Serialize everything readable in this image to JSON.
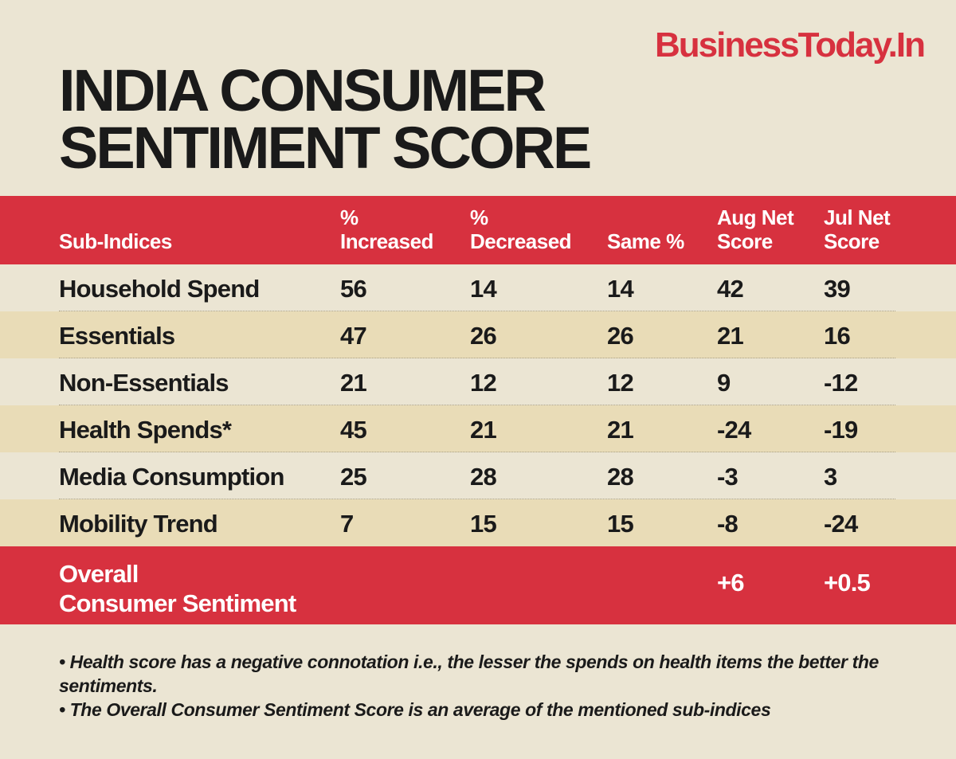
{
  "brand": "BusinessToday.In",
  "title": {
    "line1": "INDIA CONSUMER",
    "line2": "SENTIMENT SCORE"
  },
  "colors": {
    "accent": "#d7313f",
    "background": "#ebe5d3",
    "alt_row": "#e9dcb7"
  },
  "chart_data": {
    "type": "table",
    "title": "INDIA CONSUMER SENTIMENT SCORE",
    "columns": [
      {
        "line1": "",
        "line2": "Sub-Indices"
      },
      {
        "line1": "%",
        "line2": "Increased"
      },
      {
        "line1": "%",
        "line2": "Decreased"
      },
      {
        "line1": "",
        "line2": "Same %"
      },
      {
        "line1": "Aug Net",
        "line2": "Score"
      },
      {
        "line1": "Jul Net",
        "line2": "Score"
      }
    ],
    "rows": [
      [
        "Household Spend",
        "56",
        "14",
        "14",
        "42",
        "39"
      ],
      [
        "Essentials",
        "47",
        "26",
        "26",
        "21",
        "16"
      ],
      [
        "Non-Essentials",
        "21",
        "12",
        "12",
        "9",
        "-12"
      ],
      [
        "Health Spends*",
        "45",
        "21",
        "21",
        "-24",
        "-19"
      ],
      [
        "Media Consumption",
        "25",
        "28",
        "28",
        "-3",
        "3"
      ],
      [
        "Mobility Trend",
        "7",
        "15",
        "15",
        "-8",
        "-24"
      ]
    ],
    "overall": {
      "label_line1": "Overall",
      "label_line2": "Consumer Sentiment",
      "aug": "+6",
      "jul": "+0.5"
    }
  },
  "notes": [
    "• Health score has a negative connotation i.e., the lesser the spends on health items the better the sentiments.",
    "• The Overall Consumer Sentiment Score is an average of the mentioned sub-indices"
  ]
}
